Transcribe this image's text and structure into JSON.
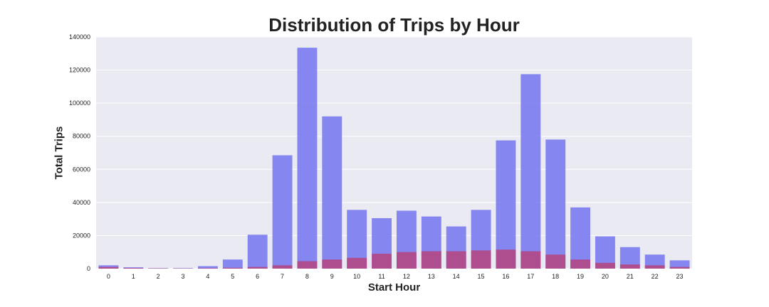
{
  "chart_data": {
    "type": "bar",
    "title": "Distribution of Trips by Hour",
    "xlabel": "Start Hour",
    "ylabel": "Total Trips",
    "categories": [
      "0",
      "1",
      "2",
      "3",
      "4",
      "5",
      "6",
      "7",
      "8",
      "9",
      "10",
      "11",
      "12",
      "13",
      "14",
      "15",
      "16",
      "17",
      "18",
      "19",
      "20",
      "21",
      "22",
      "23"
    ],
    "series": [
      {
        "values": [
          2000,
          800,
          300,
          300,
          1500,
          5500,
          20500,
          68500,
          133500,
          92000,
          35500,
          30500,
          35000,
          31500,
          25500,
          35500,
          77500,
          117500,
          78000,
          37000,
          19500,
          13000,
          8500,
          5000
        ],
        "color": "#7b7bef"
      },
      {
        "values": [
          1000,
          400,
          200,
          150,
          300,
          500,
          1000,
          2000,
          4500,
          5500,
          6500,
          9000,
          10000,
          10500,
          10500,
          11000,
          11500,
          10500,
          8500,
          5500,
          3500,
          2500,
          2000,
          1000
        ],
        "color": "#b5447e"
      }
    ],
    "ylim": [
      0,
      140000
    ],
    "yticks": [
      "0",
      "20000",
      "40000",
      "60000",
      "80000",
      "100000",
      "120000",
      "140000"
    ],
    "grid": true,
    "colors": {
      "background": "#eaeaf2",
      "grid": "#ffffff"
    }
  }
}
